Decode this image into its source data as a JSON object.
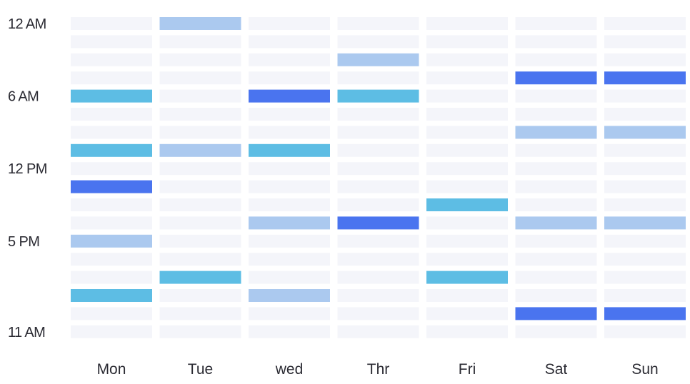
{
  "chart_data": {
    "type": "heatmap",
    "title": "",
    "xlabel": "",
    "ylabel": "",
    "days": [
      "Mon",
      "Tue",
      "wed",
      "Thr",
      "Fri",
      "Sat",
      "Sun"
    ],
    "y_tick_labels": [
      {
        "label": "12 AM",
        "row": 0
      },
      {
        "label": "6 AM",
        "row": 4
      },
      {
        "label": "12 PM",
        "row": 8
      },
      {
        "label": "5 PM",
        "row": 12
      },
      {
        "label": "11 AM",
        "row": 17
      }
    ],
    "row_count": 18,
    "levels": {
      "0": "empty",
      "1": "light",
      "2": "medium",
      "3": "dark"
    },
    "colors": {
      "empty": "#f4f5fa",
      "light": "#abc9ef",
      "medium": "#5dbde4",
      "dark": "#4a74ef"
    },
    "grid": [
      [
        0,
        1,
        0,
        0,
        0,
        0,
        0
      ],
      [
        0,
        0,
        0,
        0,
        0,
        0,
        0
      ],
      [
        0,
        0,
        0,
        1,
        0,
        0,
        0
      ],
      [
        0,
        0,
        0,
        0,
        0,
        3,
        3
      ],
      [
        2,
        0,
        3,
        2,
        0,
        0,
        0
      ],
      [
        0,
        0,
        0,
        0,
        0,
        0,
        0
      ],
      [
        0,
        0,
        0,
        0,
        0,
        1,
        1
      ],
      [
        2,
        1,
        2,
        0,
        0,
        0,
        0
      ],
      [
        0,
        0,
        0,
        0,
        0,
        0,
        0
      ],
      [
        3,
        0,
        0,
        0,
        0,
        0,
        0
      ],
      [
        0,
        0,
        0,
        0,
        2,
        0,
        0
      ],
      [
        0,
        0,
        1,
        3,
        0,
        1,
        1
      ],
      [
        1,
        0,
        0,
        0,
        0,
        0,
        0
      ],
      [
        0,
        0,
        0,
        0,
        0,
        0,
        0
      ],
      [
        0,
        2,
        0,
        0,
        2,
        0,
        0
      ],
      [
        2,
        0,
        1,
        0,
        0,
        0,
        0
      ],
      [
        0,
        0,
        0,
        0,
        0,
        3,
        3
      ],
      [
        0,
        0,
        0,
        0,
        0,
        0,
        0
      ]
    ]
  }
}
